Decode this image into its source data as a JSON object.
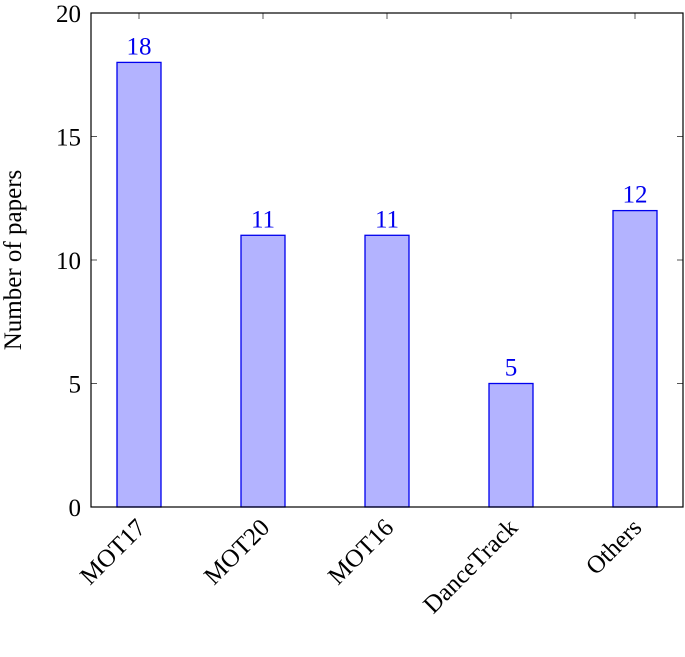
{
  "chart_data": {
    "type": "bar",
    "y_label": "Number of papers",
    "categories": [
      "MOT17",
      "MOT20",
      "MOT16",
      "DanceTrack",
      "Others"
    ],
    "values": [
      18,
      11,
      11,
      5,
      12
    ],
    "color": "#b3b3ff",
    "edge_color": "#0000ee",
    "ylim": [
      0,
      20
    ],
    "yticks": [
      0,
      5,
      10,
      15,
      20
    ],
    "grid": false
  }
}
